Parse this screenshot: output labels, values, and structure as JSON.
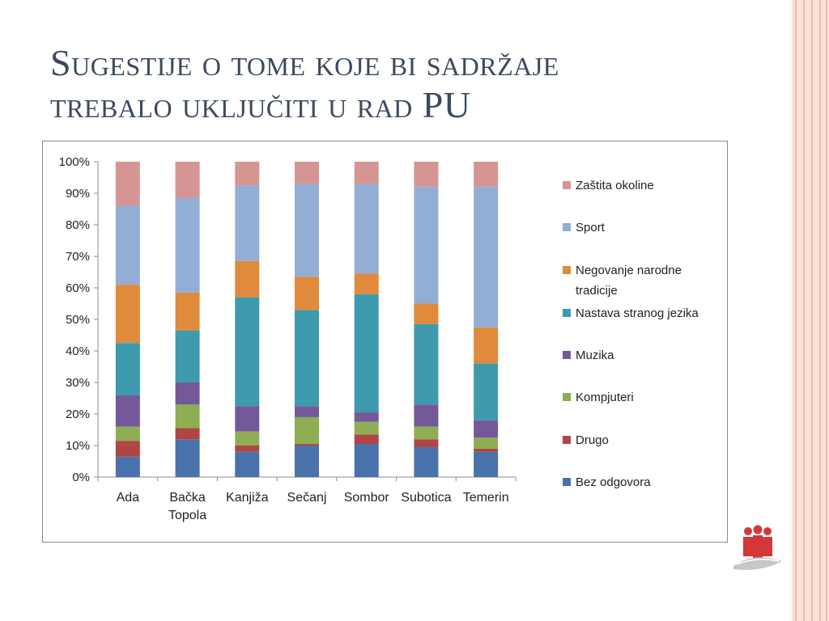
{
  "slide": {
    "title_line1": "Sugestije o tome koje bi sadržaje",
    "title_line2": "trebalo uključiti u rad PU"
  },
  "logo": {
    "icon": "people-hand-logo-icon",
    "color": "#d4373a"
  },
  "chart_data": {
    "type": "bar",
    "stacked": "percent",
    "title": "",
    "xlabel": "",
    "ylabel": "",
    "ylim": [
      0,
      100
    ],
    "y_ticks": [
      "0%",
      "10%",
      "20%",
      "30%",
      "40%",
      "50%",
      "60%",
      "70%",
      "80%",
      "90%",
      "100%"
    ],
    "grid": false,
    "legend_position": "right",
    "categories": [
      [
        "Ada"
      ],
      [
        "Bačka",
        "Topola"
      ],
      [
        "Kanjiža"
      ],
      [
        "Sečanj"
      ],
      [
        "Sombor"
      ],
      [
        "Subotica"
      ],
      [
        "Temerin"
      ]
    ],
    "series": [
      {
        "name": "Bez odgovora",
        "color": "#4a72aa",
        "values": [
          6.5,
          12,
          8,
          10,
          10.5,
          9.5,
          8
        ]
      },
      {
        "name": "Drugo",
        "color": "#b04545",
        "values": [
          5,
          3.5,
          2,
          0.5,
          3,
          2.5,
          1
        ]
      },
      {
        "name": "Kompjuteri",
        "color": "#8fad52",
        "values": [
          4.5,
          7.5,
          4.5,
          8.5,
          4,
          4,
          3.5
        ]
      },
      {
        "name": "Muzika",
        "color": "#73599a",
        "values": [
          10,
          7,
          8,
          3.5,
          3,
          7,
          5.5
        ]
      },
      {
        "name": "Nastava stranog jezika",
        "color": "#3e9aad",
        "values": [
          16.5,
          16.5,
          34.5,
          30.5,
          37.5,
          25.5,
          18
        ]
      },
      {
        "name": "Negovanje narodne tradicije",
        "color": "#e08a3c",
        "values": [
          18.5,
          12,
          11.5,
          10.5,
          6.5,
          6.5,
          11.5
        ]
      },
      {
        "name": "Sport",
        "color": "#93aed5",
        "values": [
          25,
          30,
          24,
          29.5,
          28.5,
          37,
          44.5
        ]
      },
      {
        "name": "Zaštita okoline",
        "color": "#d49593",
        "values": [
          14,
          11.5,
          7.5,
          7,
          7,
          8,
          8
        ]
      }
    ],
    "legend_order": [
      "Zaštita okoline",
      "Sport",
      "Negovanje narodne tradicije",
      "Nastava stranog jezika",
      "Muzika",
      "Kompjuteri",
      "Drugo",
      "Bez odgovora"
    ]
  }
}
